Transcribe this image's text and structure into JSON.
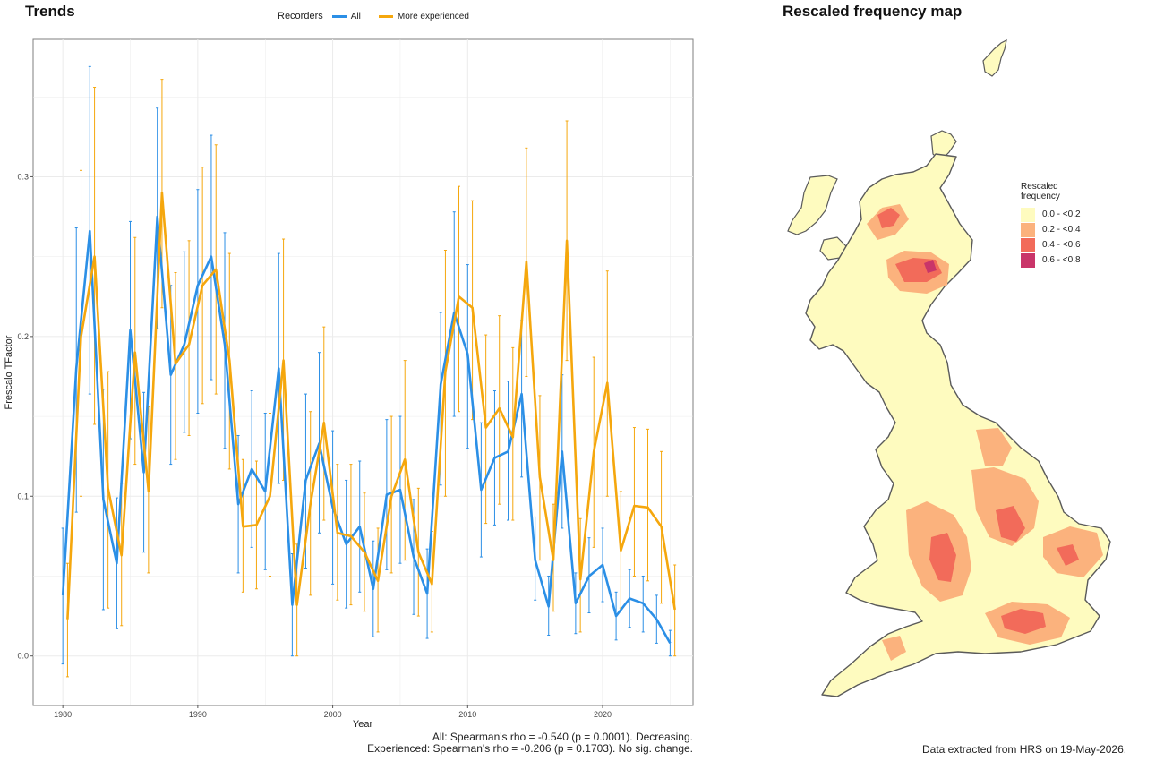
{
  "titles": {
    "trends": "Trends",
    "map": "Rescaled frequency map"
  },
  "legend": {
    "title": "Recorders",
    "items": [
      {
        "label": "All",
        "color": "#2b8fe6"
      },
      {
        "label": "More experienced",
        "color": "#f5a70d"
      }
    ]
  },
  "chart_data": {
    "type": "line",
    "title": "Trends",
    "xlabel": "Year",
    "ylabel": "Frescalo TFactor",
    "xlim": [
      1977.8,
      2026.7
    ],
    "ylim": [
      -0.031,
      0.386
    ],
    "xticks": [
      1980,
      1990,
      2000,
      2010,
      2020
    ],
    "yticks": [
      0.0,
      0.1,
      0.2,
      0.3
    ],
    "ytick_labels": [
      "0.0",
      "0.1",
      "0.2",
      "0.3"
    ],
    "grid": true,
    "legend_position": "top",
    "x": [
      1980,
      1981,
      1982,
      1983,
      1984,
      1985,
      1986,
      1987,
      1988,
      1989,
      1990,
      1991,
      1992,
      1993,
      1994,
      1995,
      1996,
      1997,
      1998,
      1999,
      2000,
      2001,
      2002,
      2003,
      2004,
      2005,
      2006,
      2007,
      2008,
      2009,
      2010,
      2011,
      2012,
      2013,
      2014,
      2015,
      2016,
      2017,
      2018,
      2019,
      2020,
      2021,
      2022,
      2023,
      2024,
      2025
    ],
    "series": [
      {
        "name": "All",
        "color": "#2b8fe6",
        "values": [
          0.038,
          0.18,
          0.266,
          0.098,
          0.058,
          0.204,
          0.115,
          0.275,
          0.176,
          0.195,
          0.232,
          0.25,
          0.195,
          0.095,
          0.117,
          0.103,
          0.18,
          0.032,
          0.11,
          0.133,
          0.093,
          0.07,
          0.081,
          0.042,
          0.101,
          0.104,
          0.062,
          0.039,
          0.17,
          0.215,
          0.189,
          0.104,
          0.124,
          0.128,
          0.164,
          0.06,
          0.031,
          0.128,
          0.033,
          0.05,
          0.057,
          0.025,
          0.036,
          0.033,
          0.023,
          0.008
        ],
        "lower": [
          -0.005,
          0.09,
          0.164,
          0.029,
          0.017,
          0.136,
          0.065,
          0.205,
          0.12,
          0.14,
          0.152,
          0.173,
          0.13,
          0.052,
          0.068,
          0.054,
          0.108,
          0.0,
          0.055,
          0.077,
          0.045,
          0.03,
          0.04,
          0.012,
          0.054,
          0.058,
          0.026,
          0.011,
          0.107,
          0.15,
          0.13,
          0.062,
          0.082,
          0.085,
          0.112,
          0.035,
          0.013,
          0.08,
          0.014,
          0.027,
          0.034,
          0.01,
          0.018,
          0.015,
          0.008,
          0.0
        ],
        "upper": [
          0.08,
          0.268,
          0.369,
          0.167,
          0.099,
          0.272,
          0.165,
          0.343,
          0.232,
          0.253,
          0.292,
          0.326,
          0.265,
          0.138,
          0.166,
          0.152,
          0.252,
          0.064,
          0.164,
          0.19,
          0.141,
          0.11,
          0.122,
          0.072,
          0.148,
          0.15,
          0.098,
          0.067,
          0.215,
          0.278,
          0.245,
          0.146,
          0.166,
          0.172,
          0.21,
          0.087,
          0.05,
          0.176,
          0.052,
          0.074,
          0.08,
          0.04,
          0.054,
          0.05,
          0.038,
          0.016
        ]
      },
      {
        "name": "More experienced",
        "color": "#f5a70d",
        "values": [
          0.023,
          0.2,
          0.25,
          0.105,
          0.063,
          0.19,
          0.103,
          0.29,
          0.183,
          0.195,
          0.232,
          0.242,
          0.185,
          0.081,
          0.082,
          0.1,
          0.185,
          0.032,
          0.095,
          0.146,
          0.077,
          0.075,
          0.065,
          0.047,
          0.1,
          0.123,
          0.065,
          0.045,
          0.178,
          0.225,
          0.218,
          0.143,
          0.155,
          0.137,
          0.247,
          0.112,
          0.06,
          0.26,
          0.048,
          0.128,
          0.171,
          0.066,
          0.094,
          0.093,
          0.081,
          0.029
        ],
        "lower": [
          -0.013,
          0.1,
          0.145,
          0.03,
          0.019,
          0.12,
          0.052,
          0.218,
          0.123,
          0.138,
          0.158,
          0.164,
          0.117,
          0.04,
          0.042,
          0.05,
          0.11,
          0.0,
          0.038,
          0.085,
          0.035,
          0.032,
          0.028,
          0.015,
          0.052,
          0.06,
          0.025,
          0.015,
          0.1,
          0.153,
          0.148,
          0.083,
          0.095,
          0.085,
          0.175,
          0.06,
          0.028,
          0.185,
          0.015,
          0.068,
          0.1,
          0.03,
          0.05,
          0.047,
          0.033,
          0.0
        ],
        "upper": [
          0.058,
          0.304,
          0.356,
          0.178,
          0.108,
          0.262,
          0.156,
          0.361,
          0.24,
          0.26,
          0.306,
          0.32,
          0.252,
          0.123,
          0.122,
          0.152,
          0.261,
          0.07,
          0.153,
          0.206,
          0.12,
          0.12,
          0.102,
          0.08,
          0.15,
          0.185,
          0.105,
          0.078,
          0.254,
          0.294,
          0.285,
          0.201,
          0.213,
          0.193,
          0.318,
          0.163,
          0.095,
          0.335,
          0.086,
          0.187,
          0.241,
          0.103,
          0.143,
          0.142,
          0.128,
          0.057
        ]
      }
    ]
  },
  "stats": {
    "all": "All: Spearman's rho = -0.540 (p = 0.0001). Decreasing.",
    "experienced": "Experienced: Spearman's rho = -0.206 (p = 0.1703). No sig. change."
  },
  "map": {
    "legend_title_line1": "Rescaled",
    "legend_title_line2": "frequency",
    "classes": [
      {
        "label": "0.0 - <0.2",
        "color": "#fefbbf"
      },
      {
        "label": "0.2 - <0.4",
        "color": "#fbb27d"
      },
      {
        "label": "0.4 - <0.6",
        "color": "#f26b5a"
      },
      {
        "label": "0.6 - <0.8",
        "color": "#c93569"
      }
    ],
    "outline_color": "#5a5a5a"
  },
  "source_note": "Data extracted from HRS on 19-May-2026."
}
